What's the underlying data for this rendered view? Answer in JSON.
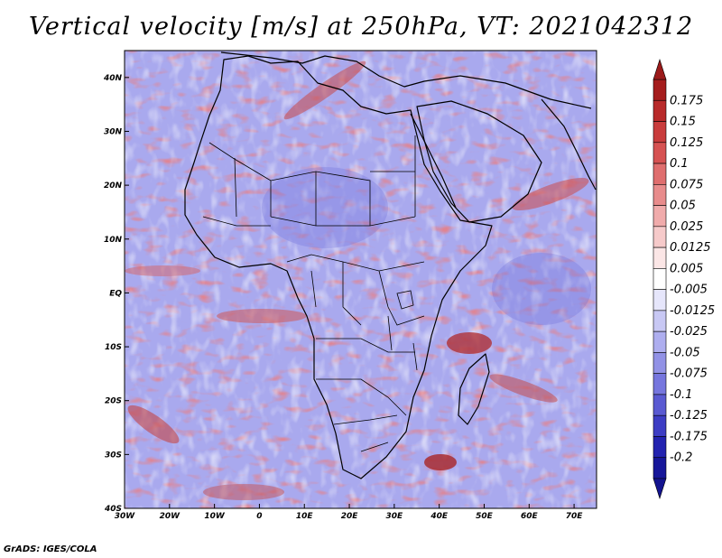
{
  "title": "Vertical velocity [m/s] at 250hPa, VT: 2021042312",
  "credit": "GrADS: IGES/COLA",
  "map": {
    "lon_range": [
      -30,
      75
    ],
    "lat_range": [
      -40,
      45
    ],
    "lon_ticks": [
      {
        "value": -30,
        "label": "30W"
      },
      {
        "value": -20,
        "label": "20W"
      },
      {
        "value": -10,
        "label": "10W"
      },
      {
        "value": 0,
        "label": "0"
      },
      {
        "value": 10,
        "label": "10E"
      },
      {
        "value": 20,
        "label": "20E"
      },
      {
        "value": 30,
        "label": "30E"
      },
      {
        "value": 40,
        "label": "40E"
      },
      {
        "value": 50,
        "label": "50E"
      },
      {
        "value": 60,
        "label": "60E"
      },
      {
        "value": 70,
        "label": "70E"
      }
    ],
    "lat_ticks": [
      {
        "value": 40,
        "label": "40N"
      },
      {
        "value": 30,
        "label": "30N"
      },
      {
        "value": 20,
        "label": "20N"
      },
      {
        "value": 10,
        "label": "10N"
      },
      {
        "value": 0,
        "label": "EQ"
      },
      {
        "value": -10,
        "label": "10S"
      },
      {
        "value": -20,
        "label": "20S"
      },
      {
        "value": -30,
        "label": "30S"
      },
      {
        "value": -40,
        "label": "40S"
      }
    ]
  },
  "colorbar": {
    "labels": [
      "0.175",
      "0.15",
      "0.125",
      "0.1",
      "0.075",
      "0.05",
      "0.025",
      "0.0125",
      "0.005",
      "-0.005",
      "-0.0125",
      "-0.025",
      "-0.05",
      "-0.075",
      "-0.1",
      "-0.125",
      "-0.175",
      "-0.2"
    ],
    "colors": [
      "#a51d1d",
      "#b82a2a",
      "#c93c3c",
      "#d65252",
      "#df6e6e",
      "#e88c8c",
      "#f0abab",
      "#f6caca",
      "#fbe6e6",
      "#ffffff",
      "#e6e6fb",
      "#c8c8f4",
      "#aeaeef",
      "#9292e6",
      "#7676de",
      "#5a5ad2",
      "#3d3dc4",
      "#2323b0",
      "#17179a"
    ]
  }
}
